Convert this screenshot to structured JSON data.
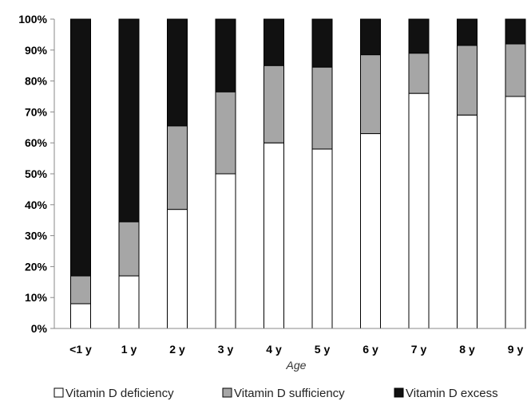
{
  "chart_data": {
    "type": "bar",
    "stacked": true,
    "percent": true,
    "categories": [
      "<1 y",
      "1 y",
      "2 y",
      "3 y",
      "4 y",
      "5 y",
      "6 y",
      "7 y",
      "8 y",
      "9 y"
    ],
    "series": [
      {
        "name": "Vitamin D deficiency",
        "color": "#ffffff",
        "values": [
          8,
          17,
          38.5,
          50,
          60,
          58,
          63,
          76,
          69,
          75
        ]
      },
      {
        "name": "Vitamin D sufficiency",
        "color": "#a6a6a6",
        "values": [
          9,
          17.5,
          27,
          26.5,
          25,
          26.5,
          25.5,
          13,
          22.5,
          17
        ]
      },
      {
        "name": "Vitamin D excess",
        "color": "#111111",
        "values": [
          83,
          65.5,
          34.5,
          23.5,
          15,
          15.5,
          11.5,
          11,
          8.5,
          8
        ]
      }
    ],
    "xlabel": "Age",
    "ylabel": "",
    "ylim": [
      0,
      100
    ],
    "yticks": [
      "0%",
      "10%",
      "20%",
      "30%",
      "40%",
      "50%",
      "60%",
      "70%",
      "80%",
      "90%",
      "100%"
    ],
    "grid": false,
    "legend": "bottom"
  }
}
